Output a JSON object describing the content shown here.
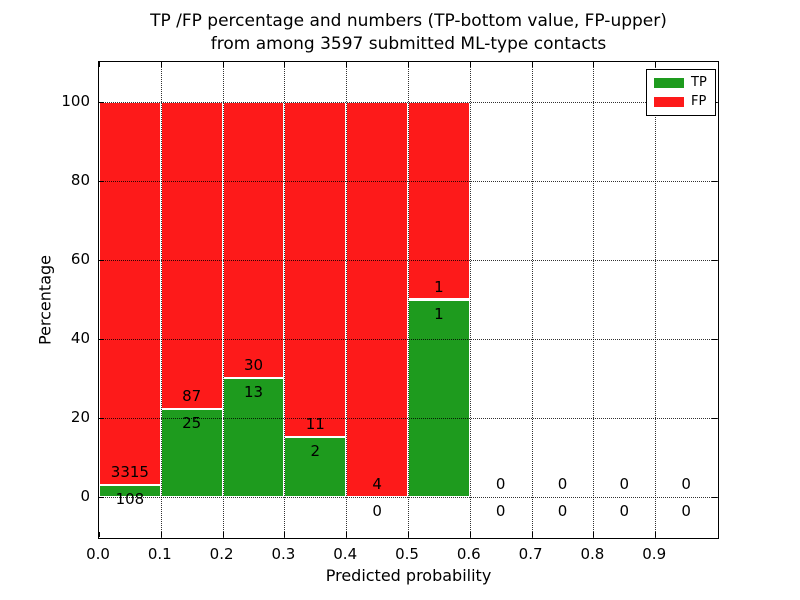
{
  "chart_data": {
    "type": "bar",
    "stacked": true,
    "title": "TP /FP percentage and numbers (TP-bottom value, FP-upper) from among 3597 submitted ML-type contacts",
    "title_lines": [
      "TP /FP percentage and numbers (TP-bottom value, FP-upper)",
      "from among 3597 submitted ML-type contacts"
    ],
    "xlabel": "Predicted probability",
    "ylabel": "Percentage",
    "xlim": [
      0.0,
      1.0
    ],
    "ylim": [
      -10,
      110
    ],
    "grid": "dotted-black",
    "bar_edge_color": "#ffffff",
    "legend_position": "upper right",
    "total_contacts": 3597,
    "series": [
      {
        "name": "TP",
        "color": "#1e9b1e"
      },
      {
        "name": "FP",
        "color": "#fd1a1a"
      }
    ],
    "xticks": {
      "values": [
        0.0,
        0.1,
        0.2,
        0.3,
        0.4,
        0.5,
        0.6,
        0.7,
        0.8,
        0.9
      ],
      "labels": [
        "0.0",
        "0.1",
        "0.2",
        "0.3",
        "0.4",
        "0.5",
        "0.6",
        "0.7",
        "0.8",
        "0.9"
      ]
    },
    "yticks": {
      "values": [
        0,
        20,
        40,
        60,
        80,
        100
      ],
      "labels": [
        "0",
        "20",
        "40",
        "60",
        "80",
        "100"
      ]
    },
    "bins": [
      {
        "range": [
          0.0,
          0.1
        ],
        "tp": 108,
        "fp": 3315,
        "tp_pct": 3.16,
        "fp_pct": 96.84
      },
      {
        "range": [
          0.1,
          0.2
        ],
        "tp": 25,
        "fp": 87,
        "tp_pct": 22.32,
        "fp_pct": 77.68
      },
      {
        "range": [
          0.2,
          0.3
        ],
        "tp": 13,
        "fp": 30,
        "tp_pct": 30.23,
        "fp_pct": 69.77
      },
      {
        "range": [
          0.3,
          0.4
        ],
        "tp": 2,
        "fp": 11,
        "tp_pct": 15.38,
        "fp_pct": 84.62
      },
      {
        "range": [
          0.4,
          0.5
        ],
        "tp": 0,
        "fp": 4,
        "tp_pct": 0,
        "fp_pct": 100
      },
      {
        "range": [
          0.5,
          0.6
        ],
        "tp": 1,
        "fp": 1,
        "tp_pct": 50,
        "fp_pct": 50
      },
      {
        "range": [
          0.6,
          0.7
        ],
        "tp": 0,
        "fp": 0,
        "tp_pct": null,
        "fp_pct": null
      },
      {
        "range": [
          0.7,
          0.8
        ],
        "tp": 0,
        "fp": 0,
        "tp_pct": null,
        "fp_pct": null
      },
      {
        "range": [
          0.8,
          0.9
        ],
        "tp": 0,
        "fp": 0,
        "tp_pct": null,
        "fp_pct": null
      },
      {
        "range": [
          0.9,
          1.0
        ],
        "tp": 0,
        "fp": 0,
        "tp_pct": null,
        "fp_pct": null
      }
    ]
  }
}
